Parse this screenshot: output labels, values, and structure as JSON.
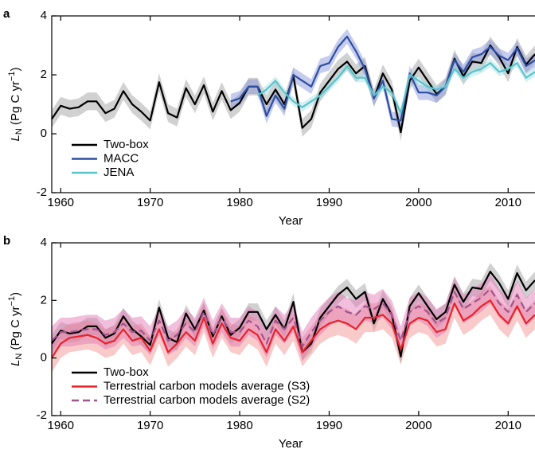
{
  "chart_data": [
    {
      "type": "line",
      "panel": "a",
      "xlabel": "Year",
      "ylabel": [
        "L",
        "N",
        " (Pg C yr",
        "−1",
        ")"
      ],
      "xlim": [
        1959,
        2013
      ],
      "ylim": [
        -2,
        4
      ],
      "xticks": [
        1960,
        1970,
        1980,
        1990,
        2000,
        2010
      ],
      "yticks": [
        -2,
        0,
        2,
        4
      ],
      "x": [
        1959,
        1960,
        1961,
        1962,
        1963,
        1964,
        1965,
        1966,
        1967,
        1968,
        1969,
        1970,
        1971,
        1972,
        1973,
        1974,
        1975,
        1976,
        1977,
        1978,
        1979,
        1980,
        1981,
        1982,
        1983,
        1984,
        1985,
        1986,
        1987,
        1988,
        1989,
        1990,
        1991,
        1992,
        1993,
        1994,
        1995,
        1996,
        1997,
        1998,
        1999,
        2000,
        2001,
        2002,
        2003,
        2004,
        2005,
        2006,
        2007,
        2008,
        2009,
        2010,
        2011,
        2012,
        2013
      ],
      "series": [
        {
          "name": "Two-box",
          "color": "#000000",
          "band_color": "#9a9a9a",
          "uncertainty": 0.3,
          "values": [
            0.5,
            0.95,
            0.85,
            0.9,
            1.1,
            1.1,
            0.7,
            0.85,
            1.45,
            1.0,
            0.75,
            0.45,
            1.75,
            0.7,
            0.55,
            1.55,
            1.0,
            1.65,
            0.75,
            1.45,
            0.8,
            1.05,
            1.6,
            1.6,
            1.0,
            1.5,
            1.0,
            1.95,
            0.2,
            0.5,
            1.4,
            1.8,
            2.2,
            2.45,
            2.05,
            2.3,
            1.2,
            2.05,
            1.5,
            0.05,
            1.8,
            2.25,
            1.8,
            1.35,
            1.6,
            2.55,
            1.95,
            2.45,
            2.4,
            3.0,
            2.6,
            2.05,
            2.95,
            2.35,
            2.7
          ]
        },
        {
          "name": "MACC",
          "color": "#2d4ea3",
          "band_color": "#7f8fd6",
          "uncertainty": 0.25,
          "values": [
            null,
            null,
            null,
            null,
            null,
            null,
            null,
            null,
            null,
            null,
            null,
            null,
            null,
            null,
            null,
            null,
            null,
            null,
            null,
            null,
            1.1,
            1.2,
            1.6,
            1.6,
            0.6,
            1.3,
            0.85,
            2.0,
            1.8,
            1.6,
            2.3,
            2.4,
            2.95,
            3.3,
            2.8,
            2.2,
            1.2,
            1.8,
            0.5,
            0.45,
            2.05,
            1.4,
            1.4,
            1.3,
            1.6,
            2.5,
            2.1,
            2.6,
            2.7,
            2.95,
            2.65,
            2.5,
            2.9,
            2.3,
            2.5
          ]
        },
        {
          "name": "JENA",
          "color": "#5bc3cc",
          "band_color": "#9fdde2",
          "uncertainty": 0.15,
          "values": [
            null,
            null,
            null,
            null,
            null,
            null,
            null,
            null,
            null,
            null,
            null,
            null,
            null,
            null,
            null,
            null,
            null,
            null,
            null,
            null,
            null,
            null,
            null,
            1.3,
            1.5,
            1.8,
            1.4,
            1.1,
            0.9,
            1.1,
            1.3,
            1.6,
            1.9,
            2.3,
            1.9,
            1.9,
            1.3,
            1.6,
            1.4,
            0.7,
            2.0,
            1.8,
            1.6,
            1.5,
            1.6,
            2.2,
            1.9,
            2.1,
            2.2,
            2.4,
            2.1,
            2.2,
            2.4,
            1.9,
            2.1
          ]
        }
      ]
    },
    {
      "type": "line",
      "panel": "b",
      "xlabel": "Year",
      "ylabel": [
        "L",
        "N",
        " (Pg C yr",
        "−1",
        ")"
      ],
      "xlim": [
        1959,
        2013
      ],
      "ylim": [
        -2,
        4
      ],
      "xticks": [
        1960,
        1970,
        1980,
        1990,
        2000,
        2010
      ],
      "yticks": [
        -2,
        0,
        2,
        4
      ],
      "x": [
        1959,
        1960,
        1961,
        1962,
        1963,
        1964,
        1965,
        1966,
        1967,
        1968,
        1969,
        1970,
        1971,
        1972,
        1973,
        1974,
        1975,
        1976,
        1977,
        1978,
        1979,
        1980,
        1981,
        1982,
        1983,
        1984,
        1985,
        1986,
        1987,
        1988,
        1989,
        1990,
        1991,
        1992,
        1993,
        1994,
        1995,
        1996,
        1997,
        1998,
        1999,
        2000,
        2001,
        2002,
        2003,
        2004,
        2005,
        2006,
        2007,
        2008,
        2009,
        2010,
        2011,
        2012,
        2013
      ],
      "series": [
        {
          "name": "Two-box",
          "color": "#000000",
          "band_color": "#9a9a9a",
          "uncertainty": 0.3,
          "values": [
            0.5,
            0.95,
            0.85,
            0.9,
            1.1,
            1.1,
            0.7,
            0.85,
            1.45,
            1.0,
            0.75,
            0.45,
            1.75,
            0.7,
            0.55,
            1.55,
            1.0,
            1.65,
            0.75,
            1.45,
            0.8,
            1.05,
            1.6,
            1.6,
            1.0,
            1.5,
            1.0,
            1.95,
            0.2,
            0.5,
            1.4,
            1.8,
            2.2,
            2.45,
            2.05,
            2.3,
            1.2,
            2.05,
            1.5,
            0.05,
            1.8,
            2.25,
            1.8,
            1.35,
            1.6,
            2.55,
            1.95,
            2.45,
            2.4,
            3.0,
            2.6,
            2.05,
            2.95,
            2.35,
            2.7
          ]
        },
        {
          "name": "Terrestrial carbon models average (S3)",
          "color": "#e8232a",
          "band_color": "#f08a8a",
          "uncertainty": 0.5,
          "values": [
            0.0,
            0.5,
            0.7,
            0.75,
            0.8,
            0.7,
            0.5,
            0.6,
            1.0,
            0.6,
            0.7,
            0.25,
            1.0,
            0.2,
            0.5,
            0.9,
            0.6,
            1.4,
            0.5,
            1.2,
            0.7,
            0.6,
            1.0,
            0.8,
            0.2,
            1.0,
            0.6,
            1.1,
            0.2,
            0.6,
            1.0,
            1.2,
            1.3,
            1.2,
            1.0,
            1.4,
            1.4,
            1.5,
            1.2,
            0.3,
            1.2,
            1.4,
            1.3,
            0.9,
            1.0,
            1.9,
            1.3,
            1.5,
            1.8,
            2.0,
            1.5,
            1.2,
            1.8,
            1.2,
            1.5
          ]
        },
        {
          "name": "Terrestrial carbon models average (S2)",
          "color": "#a0558f",
          "band_color": "#e070b0",
          "uncertainty": 0.5,
          "dash": true,
          "values": [
            0.6,
            0.9,
            0.9,
            0.95,
            1.0,
            1.0,
            0.8,
            0.9,
            1.2,
            0.9,
            0.95,
            0.6,
            1.3,
            0.6,
            0.8,
            1.2,
            0.9,
            1.6,
            0.8,
            1.4,
            0.9,
            0.9,
            1.3,
            1.1,
            0.5,
            1.3,
            1.0,
            1.4,
            0.4,
            0.9,
            1.3,
            1.6,
            1.8,
            1.6,
            1.5,
            1.8,
            1.7,
            1.9,
            1.5,
            0.6,
            1.6,
            1.8,
            1.6,
            1.2,
            1.4,
            2.3,
            1.7,
            1.9,
            2.1,
            2.4,
            1.9,
            1.6,
            2.2,
            1.6,
            1.9
          ]
        }
      ]
    }
  ]
}
